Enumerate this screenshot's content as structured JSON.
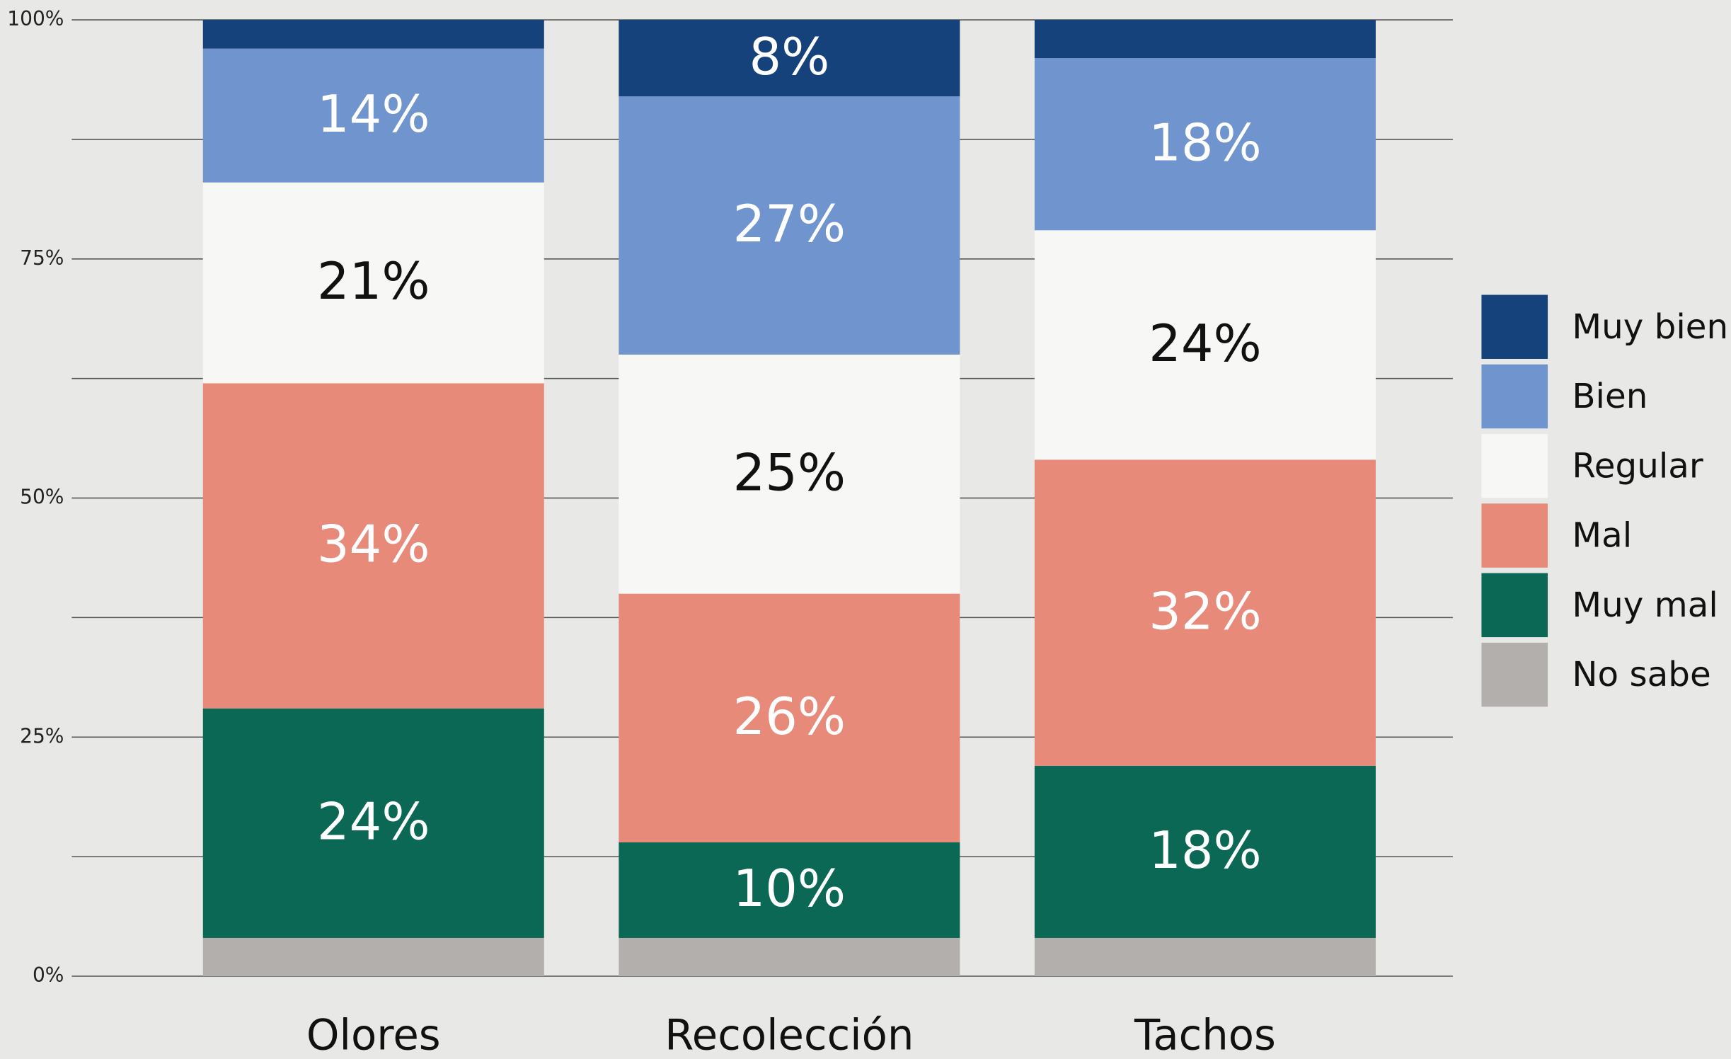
{
  "chart_data": {
    "type": "stacked_bar",
    "categories": [
      "Olores",
      "Recolección",
      "Tachos"
    ],
    "series": [
      {
        "name": "No sabe",
        "color": "#b3afad",
        "values": [
          4,
          4,
          4
        ],
        "value_labels": [
          null,
          null,
          null
        ]
      },
      {
        "name": "Muy mal",
        "color": "#0b6854",
        "values": [
          24,
          10,
          18
        ],
        "value_labels": [
          "24%",
          "10%",
          "18%"
        ]
      },
      {
        "name": "Mal",
        "color": "#e88a7a",
        "values": [
          34,
          26,
          32
        ],
        "value_labels": [
          "34%",
          "26%",
          "32%"
        ]
      },
      {
        "name": "Regular",
        "color": "#f7f7f5",
        "values": [
          21,
          25,
          24
        ],
        "value_labels": [
          "21%",
          "25%",
          "24%"
        ]
      },
      {
        "name": "Bien",
        "color": "#7094cd",
        "values": [
          14,
          27,
          18
        ],
        "value_labels": [
          "14%",
          "27%",
          "18%"
        ]
      },
      {
        "name": "Muy bien",
        "color": "#15427a",
        "values": [
          3,
          8,
          4
        ],
        "value_labels": [
          null,
          "8%",
          null
        ]
      }
    ],
    "ylim": [
      0,
      100
    ],
    "yticks": [
      {
        "value": 0,
        "label": "0%"
      },
      {
        "value": 25,
        "label": "25%"
      },
      {
        "value": 50,
        "label": "50%"
      },
      {
        "value": 75,
        "label": "75%"
      },
      {
        "value": 100,
        "label": "100%"
      }
    ],
    "minor_yticks": [
      12.5,
      37.5,
      62.5,
      87.5
    ],
    "grid": true,
    "legend": "right"
  }
}
